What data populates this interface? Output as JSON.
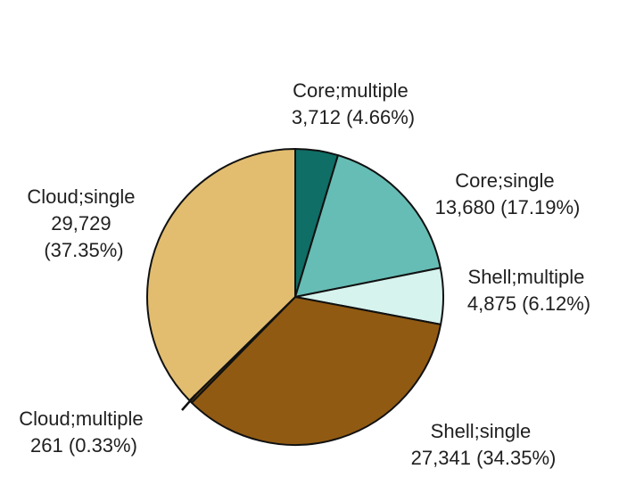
{
  "chart_data": {
    "type": "pie",
    "title": "",
    "start_angle_deg": 0,
    "direction": "clockwise",
    "slices": [
      {
        "category": "Core;multiple",
        "count_label": "3,712",
        "value": 3712,
        "percent_label": "(4.66%)",
        "color": "#0f6e66"
      },
      {
        "category": "Core;single",
        "count_label": "13,680",
        "value": 13680,
        "percent_label": "(17.19%)",
        "color": "#66bdb5"
      },
      {
        "category": "Shell;multiple",
        "count_label": "4,875",
        "value": 4875,
        "percent_label": "(6.12%)",
        "color": "#d6f3ee"
      },
      {
        "category": "Shell;single",
        "count_label": "27,341",
        "value": 27341,
        "percent_label": "(34.35%)",
        "color": "#915a12"
      },
      {
        "category": "Cloud;multiple",
        "count_label": "261",
        "value": 261,
        "percent_label": "(0.33%)",
        "color": "#5a3a0e"
      },
      {
        "category": "Cloud;single",
        "count_label": "29,729",
        "value": 29729,
        "percent_label": "(37.35%)",
        "color": "#e2bd70"
      }
    ]
  }
}
